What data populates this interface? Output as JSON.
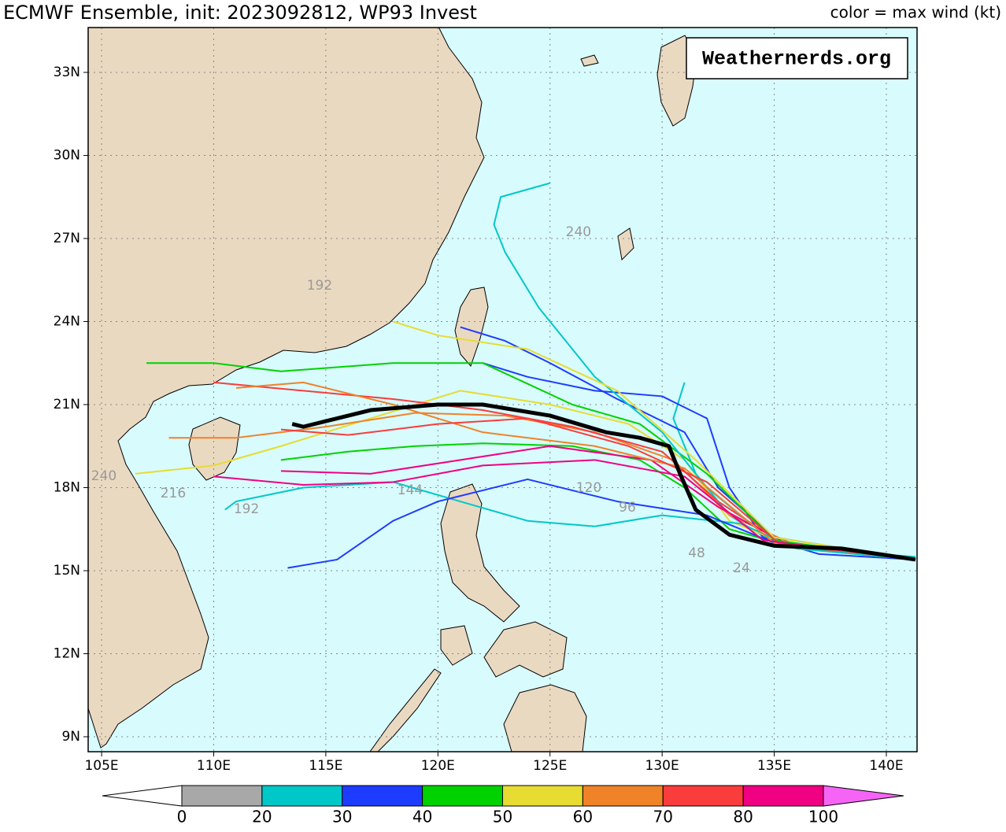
{
  "header": {
    "title": "ECMWF Ensemble, init: 2023092812, WP93 Invest",
    "subtitle": "color = max wind (kt)"
  },
  "watermark": "Weathernerds.org",
  "map": {
    "lon_range": [
      104.4,
      141.37
    ],
    "lat_range": [
      8.46,
      34.62
    ],
    "lon_ticks": [
      {
        "value": 105,
        "label": "105E"
      },
      {
        "value": 110,
        "label": "110E"
      },
      {
        "value": 115,
        "label": "115E"
      },
      {
        "value": 120,
        "label": "120E"
      },
      {
        "value": 125,
        "label": "125E"
      },
      {
        "value": 130,
        "label": "130E"
      },
      {
        "value": 135,
        "label": "135E"
      },
      {
        "value": 140,
        "label": "140E"
      }
    ],
    "lat_ticks": [
      {
        "value": 33,
        "label": "33N"
      },
      {
        "value": 30,
        "label": "30N"
      },
      {
        "value": 27,
        "label": "27N"
      },
      {
        "value": 24,
        "label": "24N"
      },
      {
        "value": 21,
        "label": "21N"
      },
      {
        "value": 18,
        "label": "18N"
      },
      {
        "value": 15,
        "label": "15N"
      },
      {
        "value": 12,
        "label": "12N"
      },
      {
        "value": 9,
        "label": "9N"
      }
    ],
    "grid": true
  },
  "colorbar": {
    "levels": [
      0,
      20,
      30,
      40,
      50,
      60,
      70,
      80,
      100
    ],
    "colors": [
      "#a8a8a8",
      "#00c8c8",
      "#1e3cff",
      "#00d200",
      "#e6dc32",
      "#f08228",
      "#fa3c3c",
      "#f00082"
    ],
    "under_color": "#ffffff",
    "over_color": "#f564f5"
  },
  "mean_track": {
    "color": "#000000",
    "points": [
      [
        141.3,
        15.4
      ],
      [
        138,
        15.8
      ],
      [
        135,
        15.9
      ],
      [
        133,
        16.3
      ],
      [
        131.5,
        17.2
      ],
      [
        130.8,
        18.5
      ],
      [
        130.3,
        19.5
      ],
      [
        129,
        19.8
      ],
      [
        127.5,
        20.0
      ],
      [
        125,
        20.6
      ],
      [
        122,
        21.0
      ],
      [
        120,
        21.0
      ],
      [
        117,
        20.8
      ],
      [
        115,
        20.4
      ],
      [
        114,
        20.2
      ],
      [
        113.5,
        20.3
      ]
    ]
  },
  "tracks": [
    {
      "color": "#00c8c8",
      "points": [
        [
          141.3,
          15.5
        ],
        [
          138,
          15.7
        ],
        [
          135,
          16.0
        ],
        [
          133,
          17
        ],
        [
          131.5,
          18.5
        ],
        [
          130.5,
          20.5
        ],
        [
          131,
          21.8
        ]
      ]
    },
    {
      "color": "#1e3cff",
      "points": [
        [
          141.3,
          15.4
        ],
        [
          137,
          15.6
        ],
        [
          134.5,
          16.2
        ],
        [
          133,
          18
        ],
        [
          132,
          20.5
        ],
        [
          130,
          21.3
        ],
        [
          127,
          21.5
        ],
        [
          124,
          22
        ],
        [
          122,
          22.5
        ]
      ]
    },
    {
      "color": "#00d200",
      "points": [
        [
          141.3,
          15.4
        ],
        [
          136,
          15.8
        ],
        [
          133,
          16.5
        ],
        [
          131,
          18
        ],
        [
          129,
          19
        ],
        [
          126,
          19.5
        ],
        [
          122,
          19.6
        ],
        [
          119,
          19.5
        ],
        [
          116,
          19.3
        ],
        [
          113,
          19.0
        ]
      ]
    },
    {
      "color": "#e6dc32",
      "points": [
        [
          141.3,
          15.4
        ],
        [
          136,
          15.8
        ],
        [
          133,
          16.8
        ],
        [
          131,
          19
        ],
        [
          128.5,
          20.3
        ],
        [
          125,
          21
        ],
        [
          121,
          21.5
        ],
        [
          117,
          20.5
        ],
        [
          113,
          19.5
        ],
        [
          110,
          18.8
        ],
        [
          106.5,
          18.5
        ]
      ]
    },
    {
      "color": "#f08228",
      "points": [
        [
          141.3,
          15.4
        ],
        [
          136,
          15.9
        ],
        [
          133,
          17
        ],
        [
          130.5,
          19
        ],
        [
          127,
          20
        ],
        [
          123,
          20.6
        ],
        [
          119,
          20.7
        ],
        [
          115,
          20.2
        ],
        [
          111,
          19.8
        ],
        [
          108,
          19.8
        ]
      ]
    },
    {
      "color": "#fa3c3c",
      "points": [
        [
          141.3,
          15.4
        ],
        [
          135.5,
          15.9
        ],
        [
          132.5,
          17.5
        ],
        [
          130,
          19.3
        ],
        [
          126,
          20.2
        ],
        [
          122,
          20.8
        ],
        [
          118,
          21.2
        ],
        [
          114,
          21.5
        ],
        [
          110,
          21.8
        ]
      ]
    },
    {
      "color": "#f00082",
      "points": [
        [
          141.3,
          15.4
        ],
        [
          135.5,
          16
        ],
        [
          132.5,
          17.3
        ],
        [
          129.5,
          19
        ],
        [
          125,
          19.5
        ],
        [
          121,
          19
        ],
        [
          117,
          18.5
        ],
        [
          113,
          18.6
        ]
      ]
    },
    {
      "color": "#1e3cff",
      "points": [
        [
          141.3,
          15.4
        ],
        [
          135,
          16.2
        ],
        [
          132.5,
          18
        ],
        [
          131,
          20
        ],
        [
          128,
          21.2
        ],
        [
          125,
          22.5
        ],
        [
          123,
          23.3
        ],
        [
          121,
          23.8
        ]
      ]
    },
    {
      "color": "#00c8c8",
      "points": [
        [
          141.3,
          15.4
        ],
        [
          136,
          15.8
        ],
        [
          133.5,
          16.7
        ],
        [
          130,
          17
        ],
        [
          127,
          16.6
        ],
        [
          124,
          16.8
        ],
        [
          121,
          17.5
        ],
        [
          118,
          18.2
        ],
        [
          114,
          18.0
        ],
        [
          111,
          17.5
        ],
        [
          110.5,
          17.2
        ]
      ]
    },
    {
      "color": "#00d200",
      "points": [
        [
          141.3,
          15.4
        ],
        [
          135,
          16.1
        ],
        [
          132,
          18.5
        ],
        [
          129,
          20.3
        ],
        [
          126,
          21
        ],
        [
          122,
          22.5
        ],
        [
          118,
          22.5
        ],
        [
          113,
          22.2
        ],
        [
          110,
          22.5
        ],
        [
          107,
          22.5
        ]
      ]
    },
    {
      "color": "#1e3cff",
      "points": [
        [
          141.3,
          15.4
        ],
        [
          135,
          16
        ],
        [
          132,
          17
        ],
        [
          128,
          17.5
        ],
        [
          124,
          18.3
        ],
        [
          120,
          17.5
        ],
        [
          118,
          16.8
        ],
        [
          115.5,
          15.4
        ],
        [
          113.3,
          15.1
        ]
      ]
    },
    {
      "color": "#00c8c8",
      "points": [
        [
          141.3,
          15.4
        ],
        [
          135,
          16
        ],
        [
          132,
          18
        ],
        [
          130,
          20
        ],
        [
          127,
          22
        ],
        [
          124.5,
          24.5
        ],
        [
          123,
          26.5
        ],
        [
          122.5,
          27.5
        ],
        [
          122.8,
          28.5
        ],
        [
          125,
          29
        ]
      ]
    },
    {
      "color": "#e6dc32",
      "points": [
        [
          141.3,
          15.4
        ],
        [
          135,
          16.2
        ],
        [
          131.5,
          19
        ],
        [
          128,
          21.5
        ],
        [
          124,
          23
        ],
        [
          120,
          23.5
        ],
        [
          118,
          24
        ]
      ]
    },
    {
      "color": "#f08228",
      "points": [
        [
          141.3,
          15.4
        ],
        [
          135,
          16
        ],
        [
          131,
          18.7
        ],
        [
          127,
          19.5
        ],
        [
          122,
          20
        ],
        [
          118,
          21
        ],
        [
          114,
          21.8
        ],
        [
          111,
          21.6
        ]
      ]
    },
    {
      "color": "#fa3c3c",
      "points": [
        [
          141.3,
          15.4
        ],
        [
          135.2,
          16
        ],
        [
          132,
          18.2
        ],
        [
          128.5,
          19.5
        ],
        [
          124,
          20.5
        ],
        [
          120,
          20.3
        ],
        [
          116,
          19.9
        ],
        [
          113,
          20.1
        ]
      ]
    },
    {
      "color": "#f00082",
      "points": [
        [
          141.3,
          15.4
        ],
        [
          134.5,
          16.1
        ],
        [
          131,
          18.4
        ],
        [
          127,
          19
        ],
        [
          122,
          18.8
        ],
        [
          118,
          18.2
        ],
        [
          114,
          18.1
        ],
        [
          110,
          18.4
        ]
      ]
    }
  ],
  "hour_labels": [
    {
      "text": "240",
      "lon": 126.27,
      "lat": 27.23
    },
    {
      "text": "192",
      "lon": 114.72,
      "lat": 25.29
    },
    {
      "text": "240",
      "lon": 105.1,
      "lat": 18.41
    },
    {
      "text": "216",
      "lon": 108.19,
      "lat": 17.79
    },
    {
      "text": "192",
      "lon": 111.46,
      "lat": 17.22
    },
    {
      "text": "144",
      "lon": 118.76,
      "lat": 17.9
    },
    {
      "text": "120",
      "lon": 126.73,
      "lat": 17.99
    },
    {
      "text": "96",
      "lon": 128.45,
      "lat": 17.28
    },
    {
      "text": "48",
      "lon": 131.54,
      "lat": 15.63
    },
    {
      "text": "24",
      "lon": 133.54,
      "lat": 15.09
    }
  ]
}
